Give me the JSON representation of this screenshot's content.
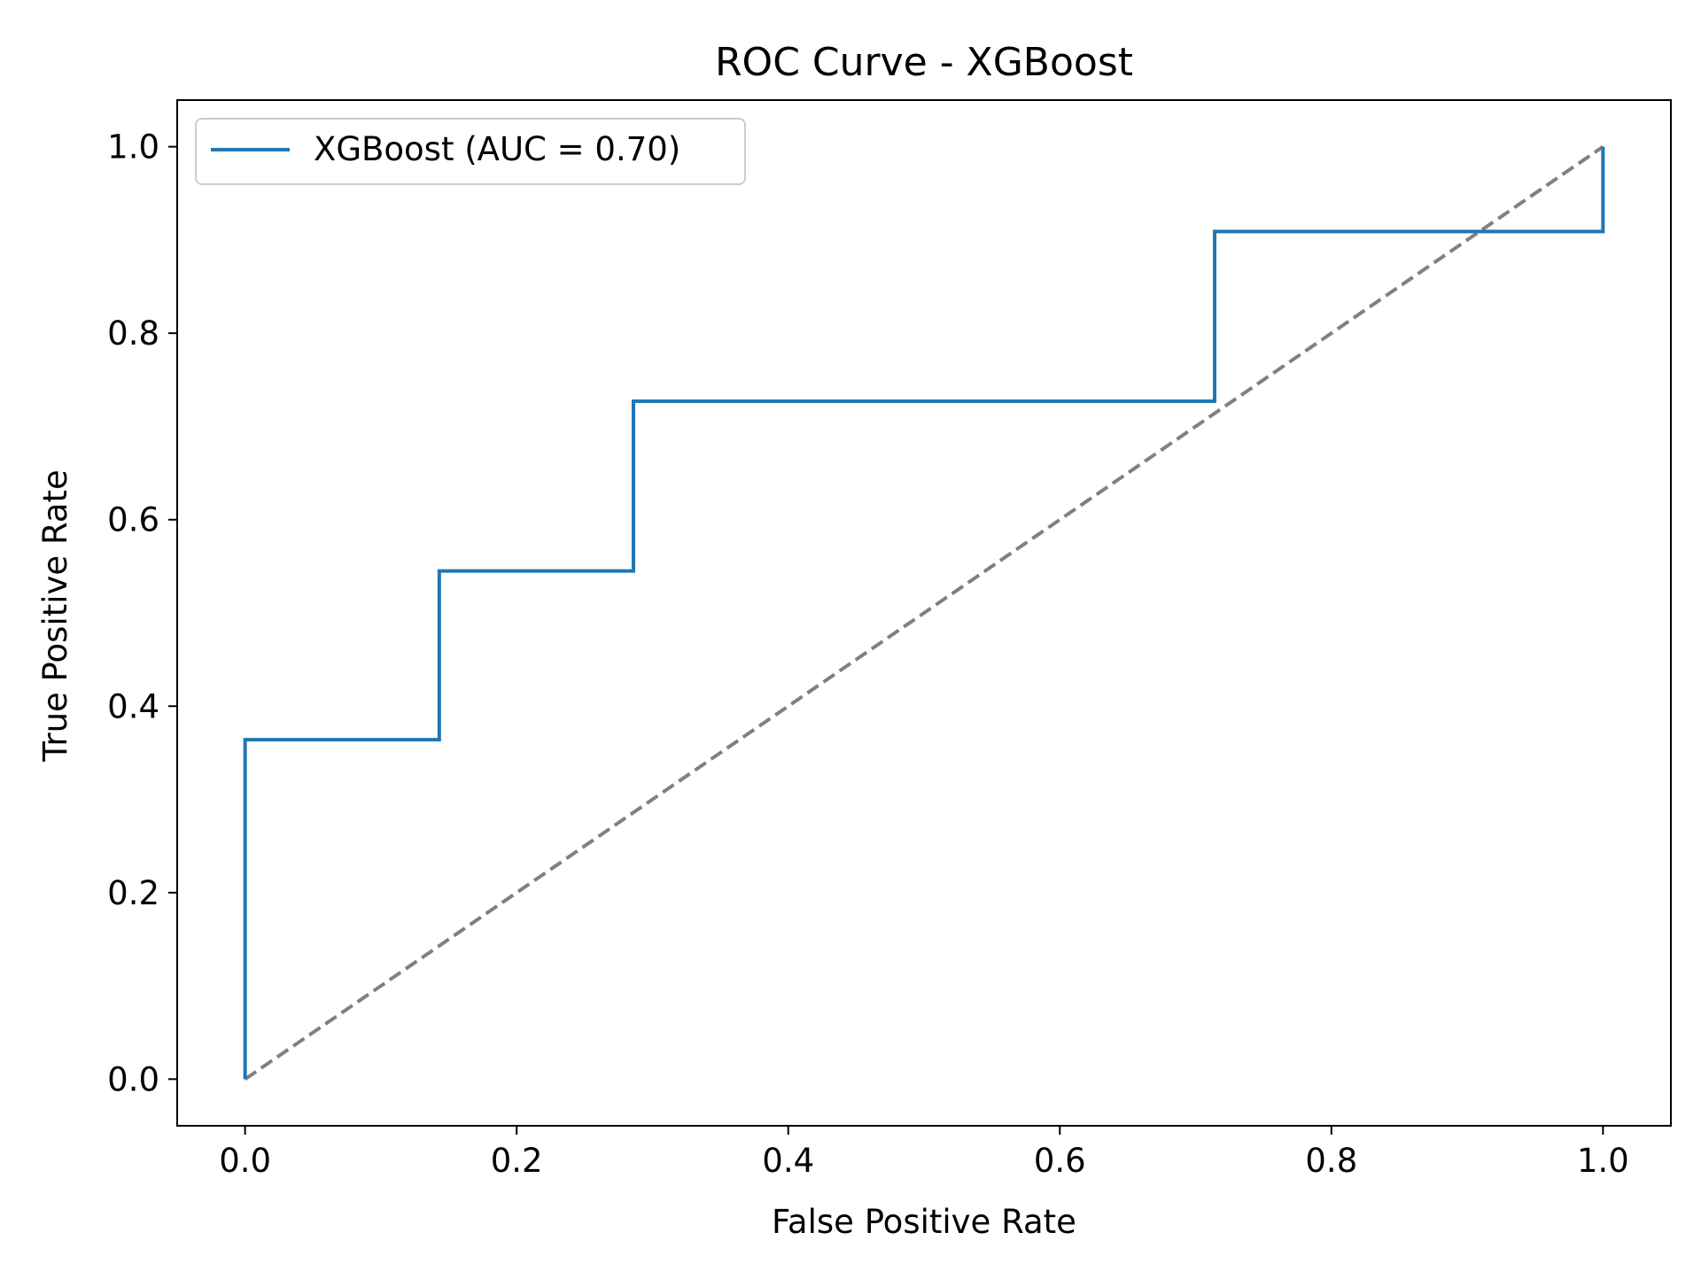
{
  "chart_data": {
    "type": "line",
    "title": "ROC Curve - XGBoost",
    "xlabel": "False Positive Rate",
    "ylabel": "True Positive Rate",
    "xlim": [
      -0.05,
      1.05
    ],
    "ylim": [
      -0.05,
      1.05
    ],
    "xticks": [
      0.0,
      0.2,
      0.4,
      0.6,
      0.8,
      1.0
    ],
    "yticks": [
      0.0,
      0.2,
      0.4,
      0.6,
      0.8,
      1.0
    ],
    "xtick_labels": [
      "0.0",
      "0.2",
      "0.4",
      "0.6",
      "0.8",
      "1.0"
    ],
    "ytick_labels": [
      "0.0",
      "0.2",
      "0.4",
      "0.6",
      "0.8",
      "1.0"
    ],
    "grid": false,
    "legend_position": "upper-left",
    "series": [
      {
        "name": "XGBoost (AUC = 0.70)",
        "color": "#1f77b4",
        "style": "solid",
        "x": [
          0.0,
          0.0,
          0.143,
          0.143,
          0.286,
          0.286,
          0.714,
          0.714,
          1.0,
          1.0
        ],
        "y": [
          0.0,
          0.364,
          0.364,
          0.545,
          0.545,
          0.727,
          0.727,
          0.909,
          0.909,
          1.0
        ]
      },
      {
        "color": "#808080",
        "style": "dashed",
        "x": [
          0.0,
          1.0
        ],
        "y": [
          0.0,
          1.0
        ]
      }
    ]
  }
}
